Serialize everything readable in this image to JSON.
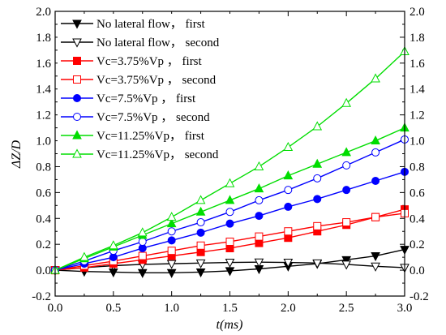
{
  "chart_data": {
    "type": "line",
    "xlabel": "t(ms)",
    "ylabel": "ΔZ/D",
    "xlim": [
      0.0,
      3.0
    ],
    "ylim": [
      -0.2,
      2.0
    ],
    "x_ticks": [
      "0.0",
      "0.5",
      "1.0",
      "1.5",
      "2.0",
      "2.5",
      "3.0"
    ],
    "y_ticks": [
      "-0.2",
      "0.0",
      "0.2",
      "0.4",
      "0.6",
      "0.8",
      "1.0",
      "1.2",
      "1.4",
      "1.6",
      "1.8",
      "2.0"
    ],
    "right_axis": true,
    "top_axis": true,
    "legend_placement": "top-left",
    "x": [
      0.0,
      0.25,
      0.5,
      0.75,
      1.0,
      1.25,
      1.5,
      1.75,
      2.0,
      2.25,
      2.5,
      2.75,
      3.0
    ],
    "series": [
      {
        "name": "No lateral flow， first",
        "color": "#000000",
        "marker": "triangle-down",
        "filled": true,
        "values": [
          0.0,
          -0.01,
          -0.015,
          -0.02,
          -0.02,
          -0.015,
          -0.005,
          0.01,
          0.03,
          0.05,
          0.08,
          0.11,
          0.16
        ]
      },
      {
        "name": "No lateral flow，  second",
        "color": "#000000",
        "marker": "triangle-down",
        "filled": false,
        "values": [
          0.0,
          0.02,
          0.035,
          0.045,
          0.05,
          0.055,
          0.06,
          0.062,
          0.06,
          0.055,
          0.045,
          0.03,
          0.02
        ]
      },
      {
        "name": "Vc=3.75%Vp ，  first",
        "color": "#ff0000",
        "marker": "square",
        "filled": true,
        "values": [
          0.0,
          0.02,
          0.05,
          0.08,
          0.11,
          0.14,
          0.17,
          0.21,
          0.25,
          0.3,
          0.35,
          0.41,
          0.47
        ]
      },
      {
        "name": "Vc=3.75%Vp ，  second",
        "color": "#ff0000",
        "marker": "square",
        "filled": false,
        "values": [
          0.0,
          0.035,
          0.07,
          0.11,
          0.15,
          0.19,
          0.22,
          0.26,
          0.3,
          0.34,
          0.37,
          0.41,
          0.44
        ]
      },
      {
        "name": "Vc=7.5%Vp ，   first",
        "color": "#0000ff",
        "marker": "circle",
        "filled": true,
        "values": [
          0.0,
          0.05,
          0.1,
          0.17,
          0.23,
          0.29,
          0.36,
          0.42,
          0.49,
          0.55,
          0.62,
          0.69,
          0.76
        ]
      },
      {
        "name": "Vc=7.5%Vp ，   second",
        "color": "#0000ff",
        "marker": "circle",
        "filled": false,
        "values": [
          0.0,
          0.07,
          0.15,
          0.22,
          0.3,
          0.37,
          0.45,
          0.54,
          0.62,
          0.71,
          0.81,
          0.91,
          1.01
        ]
      },
      {
        "name": "Vc=11.25%Vp，  first",
        "color": "#00dd00",
        "marker": "triangle-up",
        "filled": true,
        "values": [
          0.0,
          0.09,
          0.18,
          0.27,
          0.36,
          0.45,
          0.54,
          0.63,
          0.73,
          0.82,
          0.91,
          1.0,
          1.1
        ]
      },
      {
        "name": "Vc=11.25%Vp，  second",
        "color": "#00dd00",
        "marker": "triangle-up",
        "filled": false,
        "values": [
          0.0,
          0.1,
          0.19,
          0.29,
          0.41,
          0.54,
          0.67,
          0.8,
          0.95,
          1.11,
          1.29,
          1.48,
          1.69
        ]
      }
    ]
  }
}
